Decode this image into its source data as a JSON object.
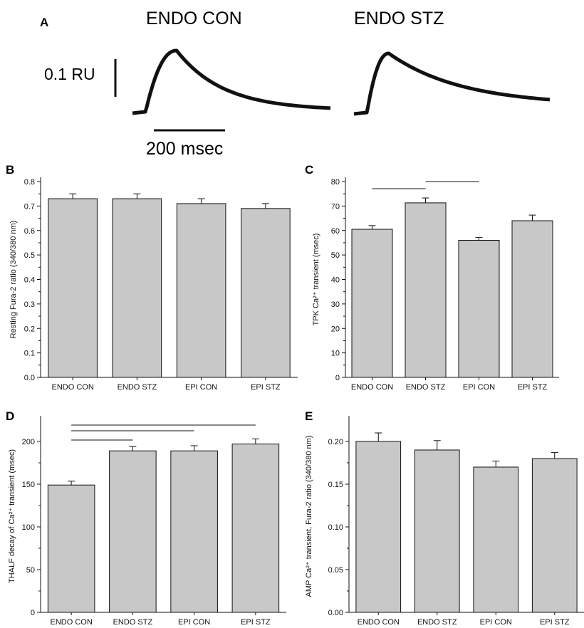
{
  "panels": {
    "A": {
      "letter": "A",
      "titles": [
        "ENDO CON",
        "ENDO STZ"
      ],
      "scale_y_label": "0.1 RU",
      "scale_x_label": "200 msec"
    }
  },
  "chart_data": [
    {
      "panel": "B",
      "type": "bar",
      "categories": [
        "ENDO CON",
        "ENDO STZ",
        "EPI CON",
        "EPI STZ"
      ],
      "values": [
        0.73,
        0.73,
        0.71,
        0.69
      ],
      "errors": [
        0.02,
        0.02,
        0.02,
        0.02
      ],
      "ylabel": "Resting Fura-2 ratio (340/380 nm)",
      "ylim": [
        0,
        0.8
      ],
      "yticks": [
        "0.0",
        "0.1",
        "0.2",
        "0.3",
        "0.4",
        "0.5",
        "0.6",
        "0.7",
        "0.8"
      ],
      "sig_lines": []
    },
    {
      "panel": "C",
      "type": "bar",
      "categories": [
        "ENDO CON",
        "ENDO STZ",
        "EPI CON",
        "EPI STZ"
      ],
      "values": [
        60.5,
        71.3,
        56.0,
        64.0
      ],
      "errors": [
        1.5,
        2.0,
        1.2,
        2.3
      ],
      "ylabel": "TPK Ca²⁺ transient (msec)",
      "ylim": [
        0,
        80
      ],
      "yticks": [
        "0",
        "10",
        "20",
        "30",
        "40",
        "50",
        "60",
        "70",
        "80"
      ],
      "sig_lines": [
        [
          0,
          1
        ],
        [
          1,
          2
        ]
      ]
    },
    {
      "panel": "D",
      "type": "bar",
      "categories": [
        "ENDO CON",
        "ENDO STZ",
        "EPI CON",
        "EPI STZ"
      ],
      "values": [
        149.0,
        189.0,
        189.0,
        197.0
      ],
      "errors": [
        4.5,
        5.0,
        6.0,
        6.0
      ],
      "ylabel": "THALF decay of Ca²⁺ transient (msec)",
      "ylim": [
        0,
        225
      ],
      "yticks": [
        "0",
        "50",
        "100",
        "150",
        "200"
      ],
      "sig_lines": [
        [
          0,
          1
        ],
        [
          0,
          2
        ],
        [
          0,
          3
        ]
      ]
    },
    {
      "panel": "E",
      "type": "bar",
      "categories": [
        "ENDO CON",
        "ENDO STZ",
        "EPI CON",
        "EPI STZ"
      ],
      "values": [
        0.2,
        0.19,
        0.17,
        0.18
      ],
      "errors": [
        0.01,
        0.011,
        0.007,
        0.007
      ],
      "ylabel": "AMP Ca²⁺ transient, Fura-2 ratio (340/380 nm)",
      "ylim": [
        0,
        0.225
      ],
      "yticks": [
        "0.00",
        "0.05",
        "0.10",
        "0.15",
        "0.20"
      ],
      "sig_lines": []
    }
  ],
  "colors": {
    "bar_fill": "#c8c8c8",
    "ink": "#111111"
  }
}
